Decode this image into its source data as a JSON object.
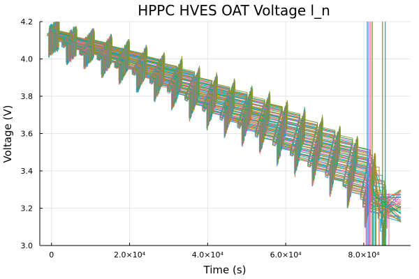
{
  "chart_data": {
    "type": "line",
    "title": "HPPC HVES OAT Voltage l_n",
    "xlabel": "Time (s)",
    "ylabel": "Voltage (V)",
    "xlim": [
      -3000,
      92000
    ],
    "ylim": [
      3.0,
      4.2
    ],
    "grid": true,
    "legend": "none",
    "x_ticks": [
      {
        "value": 0,
        "label": "0"
      },
      {
        "value": 20000,
        "label": "2.0×10⁴"
      },
      {
        "value": 40000,
        "label": "4.0×10⁴"
      },
      {
        "value": 60000,
        "label": "6.0×10⁴"
      },
      {
        "value": 80000,
        "label": "8.0×10⁴"
      }
    ],
    "y_ticks": [
      {
        "value": 3.0,
        "label": "3.0"
      },
      {
        "value": 3.2,
        "label": "3.2"
      },
      {
        "value": 3.4,
        "label": "3.4"
      },
      {
        "value": 3.6,
        "label": "3.6"
      },
      {
        "value": 3.8,
        "label": "3.8"
      },
      {
        "value": 4.0,
        "label": "4.0"
      },
      {
        "value": 4.2,
        "label": "4.2"
      }
    ],
    "series_count": 60,
    "colors": [
      "#009AFA",
      "#E36F47",
      "#3EA44E",
      "#C371D2",
      "#AC8E18",
      "#00AAAE",
      "#ED5E93",
      "#C68225",
      "#00A98D",
      "#8E971E"
    ],
    "steps": [
      {
        "t_start": 0,
        "t_end": 4500,
        "v": 4.12
      },
      {
        "t_start": 4500,
        "t_end": 9000,
        "v": 4.08
      },
      {
        "t_start": 9000,
        "t_end": 13500,
        "v": 4.06
      },
      {
        "t_start": 13500,
        "t_end": 18000,
        "v": 4.02
      },
      {
        "t_start": 18000,
        "t_end": 22500,
        "v": 3.99
      },
      {
        "t_start": 22500,
        "t_end": 27000,
        "v": 3.95
      },
      {
        "t_start": 27000,
        "t_end": 31500,
        "v": 3.91
      },
      {
        "t_start": 31500,
        "t_end": 36000,
        "v": 3.87
      },
      {
        "t_start": 36000,
        "t_end": 40500,
        "v": 3.82
      },
      {
        "t_start": 40500,
        "t_end": 45000,
        "v": 3.78
      },
      {
        "t_start": 45000,
        "t_end": 49500,
        "v": 3.74
      },
      {
        "t_start": 49500,
        "t_end": 54000,
        "v": 3.7
      },
      {
        "t_start": 54000,
        "t_end": 58500,
        "v": 3.66
      },
      {
        "t_start": 58500,
        "t_end": 63000,
        "v": 3.61
      },
      {
        "t_start": 63000,
        "t_end": 67500,
        "v": 3.56
      },
      {
        "t_start": 67500,
        "t_end": 72000,
        "v": 3.51
      },
      {
        "t_start": 72000,
        "t_end": 76500,
        "v": 3.46
      },
      {
        "t_start": 76500,
        "t_end": 81000,
        "v": 3.4
      },
      {
        "t_start": 81000,
        "t_end": 85500,
        "v": 3.3
      },
      {
        "t_start": 85500,
        "t_end": 90000,
        "v": 3.18
      }
    ]
  }
}
